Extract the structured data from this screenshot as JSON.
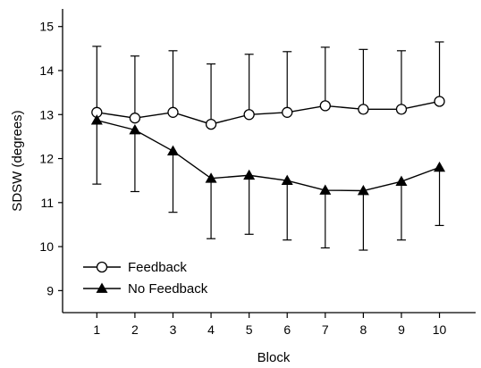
{
  "chart_data": {
    "type": "line",
    "title": "",
    "xlabel": "Block",
    "ylabel": "SDSW (degrees)",
    "x": [
      1,
      2,
      3,
      4,
      5,
      6,
      7,
      8,
      9,
      10
    ],
    "xlim": [
      0.1,
      10.95
    ],
    "ylim": [
      8.5,
      15.4
    ],
    "yticks": [
      9,
      10,
      11,
      12,
      13,
      14,
      15
    ],
    "grid": false,
    "legend_position": "bottom-left",
    "series": [
      {
        "name": "Feedback",
        "marker": "open-circle",
        "color": "#000000",
        "values": [
          13.05,
          12.92,
          13.05,
          12.78,
          13.0,
          13.05,
          13.2,
          13.12,
          13.12,
          13.3
        ],
        "error_upper": [
          14.55,
          14.33,
          14.45,
          14.15,
          14.37,
          14.43,
          14.53,
          14.48,
          14.45,
          14.65
        ],
        "error_direction": "up"
      },
      {
        "name": "No Feedback",
        "marker": "filled-triangle",
        "color": "#000000",
        "values": [
          12.87,
          12.65,
          12.17,
          11.55,
          11.62,
          11.5,
          11.28,
          11.27,
          11.48,
          11.8
        ],
        "error_lower": [
          11.42,
          11.25,
          10.78,
          10.18,
          10.28,
          10.15,
          9.97,
          9.92,
          10.15,
          10.48
        ],
        "error_direction": "down"
      }
    ]
  }
}
